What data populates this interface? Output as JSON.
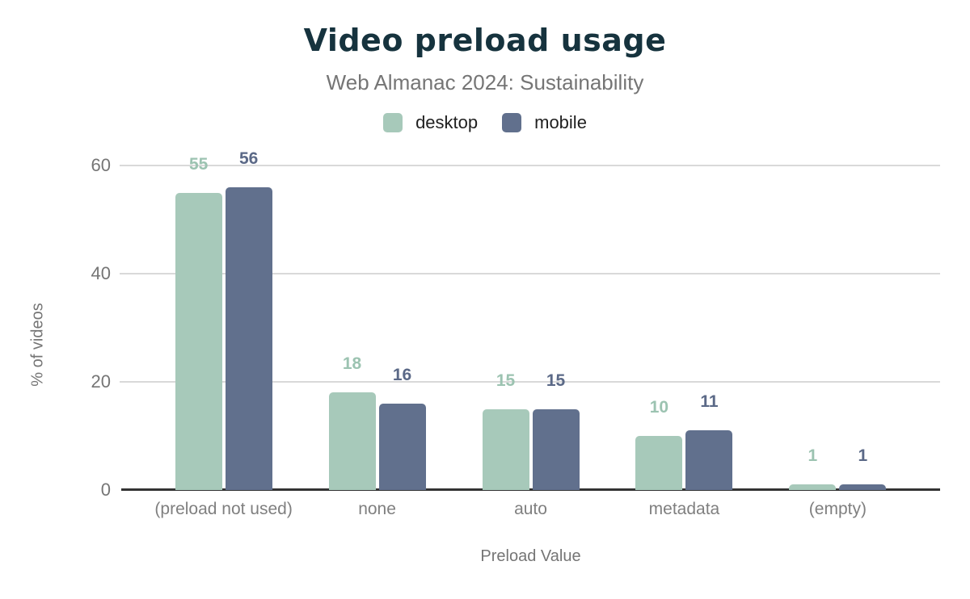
{
  "chart_data": {
    "type": "bar",
    "title": "Video preload usage",
    "subtitle": "Web Almanac 2024: Sustainability",
    "xlabel": "Preload Value",
    "ylabel": "% of videos",
    "categories": [
      "(preload not used)",
      "none",
      "auto",
      "metadata",
      "(empty)"
    ],
    "series": [
      {
        "name": "desktop",
        "color": "#a7c9ba",
        "label_color": "#9cc3b1",
        "values": [
          55,
          18,
          15,
          10,
          1
        ]
      },
      {
        "name": "mobile",
        "color": "#61708d",
        "label_color": "#5b6987",
        "values": [
          56,
          16,
          15,
          11,
          1
        ]
      }
    ],
    "ylim": [
      0,
      60
    ],
    "yticks": [
      0,
      20,
      40,
      60
    ],
    "grid": "horizontal",
    "legend_position": "top",
    "value_labels": true,
    "colors": {
      "title": "#16333e",
      "subtitle": "#757575",
      "tick_labels": "#757575",
      "category_labels": "#7f7f7f",
      "gridline": "#d9d9d9",
      "axis_line": "#333333",
      "background": "#ffffff"
    }
  }
}
